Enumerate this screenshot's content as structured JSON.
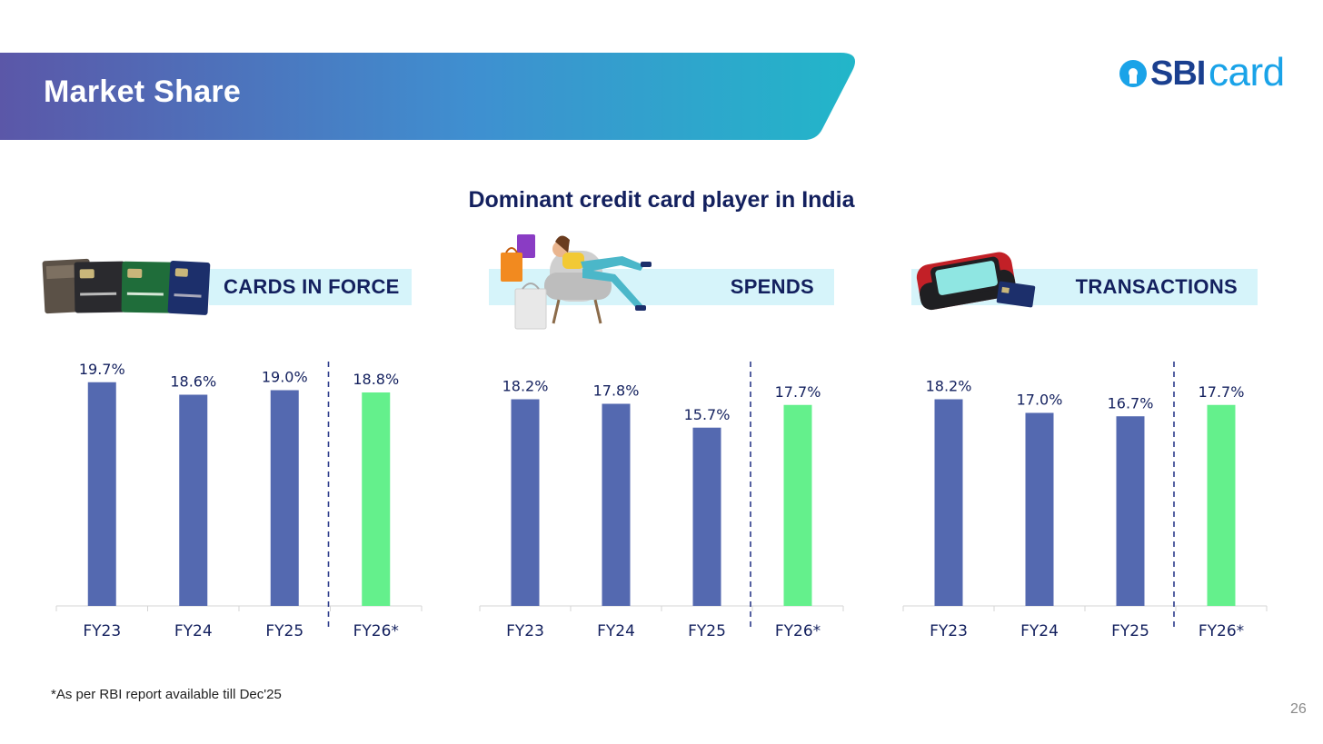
{
  "slide": {
    "title": "Market Share",
    "subtitle": "Dominant credit card player in India",
    "footnote": "*As per RBI report available till Dec'25",
    "page_number": "26"
  },
  "logo": {
    "prefix": "SBI",
    "suffix": "card",
    "color_dark": "#1a3f8f",
    "color_light": "#1aa3e8"
  },
  "colors": {
    "actual_bar": "#5469b0",
    "projected_bar": "#64f08c",
    "divider": "#2b3a8a",
    "pill": "#d6f4fa"
  },
  "chart_data": [
    {
      "type": "bar",
      "title": "CARDS IN FORCE",
      "illustration": "credit-cards-fan",
      "categories": [
        "FY23",
        "FY24",
        "FY25",
        "FY26*"
      ],
      "values": [
        19.7,
        18.6,
        19.0,
        18.8
      ],
      "value_labels": [
        "19.7%",
        "18.6%",
        "19.0%",
        "18.8%"
      ],
      "highlight_index": 3,
      "divider_before_index": 3,
      "ylim": [
        0,
        20
      ]
    },
    {
      "type": "bar",
      "title": "SPENDS",
      "illustration": "woman-shopping-bags",
      "categories": [
        "FY23",
        "FY24",
        "FY25",
        "FY26*"
      ],
      "values": [
        18.2,
        17.8,
        15.7,
        17.7
      ],
      "value_labels": [
        "18.2%",
        "17.8%",
        "15.7%",
        "17.7%"
      ],
      "highlight_index": 3,
      "divider_before_index": 3,
      "ylim": [
        0,
        20
      ]
    },
    {
      "type": "bar",
      "title": "TRANSACTIONS",
      "illustration": "pos-terminal",
      "categories": [
        "FY23",
        "FY24",
        "FY25",
        "FY26*"
      ],
      "values": [
        18.2,
        17.0,
        16.7,
        17.7
      ],
      "value_labels": [
        "18.2%",
        "17.0%",
        "16.7%",
        "17.7%"
      ],
      "highlight_index": 3,
      "divider_before_index": 3,
      "ylim": [
        0,
        20
      ]
    }
  ]
}
